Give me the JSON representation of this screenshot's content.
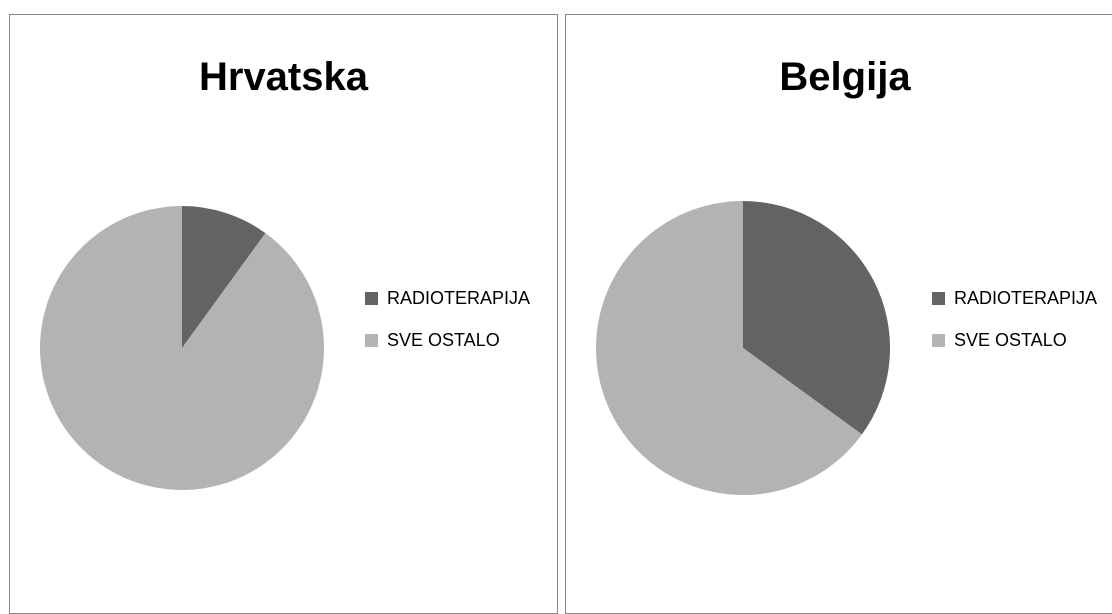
{
  "chart_data": [
    {
      "type": "pie",
      "title": "Hrvatska",
      "categories": [
        "RADIOTERAPIJA",
        "SVE OSTALO"
      ],
      "values": [
        10,
        90
      ],
      "colors": [
        "#636363",
        "#b3b3b3"
      ],
      "legend": "right"
    },
    {
      "type": "pie",
      "title": "Belgija",
      "categories": [
        "RADIOTERAPIJA",
        "SVE OSTALO"
      ],
      "values": [
        35,
        65
      ],
      "colors": [
        "#636363",
        "#b3b3b3"
      ],
      "legend": "right"
    }
  ]
}
